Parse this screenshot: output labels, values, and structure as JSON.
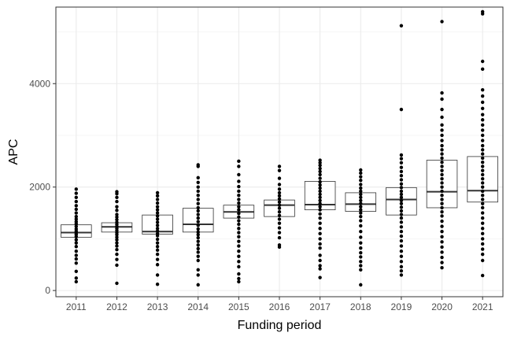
{
  "chart_data": {
    "type": "box",
    "title": "",
    "xlabel": "Funding period",
    "ylabel": "APC",
    "ylim": [
      -120,
      5480
    ],
    "yticks": [
      0,
      2000,
      4000
    ],
    "grid": true,
    "legend": "none",
    "categories": [
      "2011",
      "2012",
      "2013",
      "2014",
      "2015",
      "2016",
      "2017",
      "2018",
      "2019",
      "2020",
      "2021"
    ],
    "boxes": [
      {
        "q1": 1030,
        "median": 1120,
        "q3": 1270
      },
      {
        "q1": 1130,
        "median": 1230,
        "q3": 1310
      },
      {
        "q1": 1090,
        "median": 1140,
        "q3": 1460
      },
      {
        "q1": 1130,
        "median": 1280,
        "q3": 1590
      },
      {
        "q1": 1400,
        "median": 1520,
        "q3": 1650
      },
      {
        "q1": 1430,
        "median": 1650,
        "q3": 1750
      },
      {
        "q1": 1560,
        "median": 1660,
        "q3": 2110
      },
      {
        "q1": 1530,
        "median": 1670,
        "q3": 1890
      },
      {
        "q1": 1460,
        "median": 1760,
        "q3": 1990
      },
      {
        "q1": 1600,
        "median": 1910,
        "q3": 2520
      },
      {
        "q1": 1710,
        "median": 1930,
        "q3": 2590
      }
    ],
    "points": [
      [
        170,
        240,
        370,
        530,
        610,
        680,
        760,
        850,
        920,
        980,
        1040,
        1080,
        1110,
        1150,
        1190,
        1240,
        1290,
        1330,
        1380,
        1430,
        1500,
        1570,
        1640,
        1720,
        1800,
        1880,
        1960
      ],
      [
        140,
        490,
        600,
        700,
        790,
        860,
        920,
        980,
        1030,
        1080,
        1120,
        1160,
        1200,
        1240,
        1280,
        1320,
        1370,
        1420,
        1470,
        1550,
        1620,
        1720,
        1800,
        1870,
        1910
      ],
      [
        120,
        300,
        500,
        600,
        700,
        780,
        850,
        920,
        990,
        1060,
        1100,
        1150,
        1200,
        1260,
        1320,
        1380,
        1440,
        1500,
        1560,
        1620,
        1690,
        1760,
        1830,
        1890
      ],
      [
        110,
        300,
        400,
        580,
        660,
        740,
        810,
        880,
        950,
        1020,
        1080,
        1130,
        1190,
        1260,
        1330,
        1400,
        1470,
        1540,
        1600,
        1680,
        1760,
        1840,
        1920,
        2000,
        2090,
        2180,
        2400,
        2430
      ],
      [
        170,
        230,
        320,
        460,
        560,
        660,
        760,
        860,
        950,
        1040,
        1120,
        1200,
        1280,
        1350,
        1420,
        1490,
        1560,
        1620,
        1690,
        1760,
        1840,
        1920,
        2010,
        2110,
        2240,
        2400,
        2500
      ],
      [
        840,
        880,
        1020,
        1120,
        1210,
        1300,
        1380,
        1450,
        1520,
        1590,
        1650,
        1710,
        1770,
        1830,
        1890,
        1960,
        2050,
        2170,
        2320,
        2400
      ],
      [
        250,
        420,
        480,
        580,
        680,
        820,
        900,
        1000,
        1100,
        1200,
        1300,
        1400,
        1480,
        1560,
        1620,
        1680,
        1740,
        1800,
        1860,
        1920,
        1980,
        2040,
        2100,
        2170,
        2240,
        2300,
        2360,
        2420,
        2470,
        2520
      ],
      [
        110,
        400,
        480,
        560,
        650,
        730,
        820,
        920,
        1030,
        1140,
        1250,
        1350,
        1430,
        1500,
        1560,
        1620,
        1680,
        1740,
        1800,
        1860,
        1920,
        1980,
        2050,
        2130,
        2200,
        2270,
        2330
      ],
      [
        300,
        380,
        460,
        560,
        660,
        760,
        860,
        960,
        1050,
        1140,
        1230,
        1320,
        1400,
        1470,
        1540,
        1610,
        1680,
        1740,
        1800,
        1860,
        1920,
        1990,
        2060,
        2140,
        2220,
        2300,
        2380,
        2470,
        2550,
        2620,
        3500,
        5120
      ],
      [
        440,
        540,
        640,
        740,
        840,
        940,
        1040,
        1140,
        1240,
        1340,
        1440,
        1520,
        1600,
        1680,
        1760,
        1840,
        1920,
        2000,
        2080,
        2160,
        2240,
        2320,
        2400,
        2480,
        2560,
        2640,
        2720,
        2800,
        2900,
        3000,
        3100,
        3200,
        3350,
        3500,
        3700,
        3820,
        5200
      ],
      [
        290,
        580,
        700,
        800,
        900,
        1000,
        1100,
        1200,
        1300,
        1400,
        1500,
        1600,
        1680,
        1760,
        1840,
        1920,
        2000,
        2080,
        2160,
        2240,
        2320,
        2400,
        2480,
        2560,
        2640,
        2720,
        2800,
        2900,
        3000,
        3100,
        3200,
        3300,
        3400,
        3520,
        3640,
        3760,
        3880,
        4280,
        4430,
        5350,
        5390
      ]
    ]
  }
}
